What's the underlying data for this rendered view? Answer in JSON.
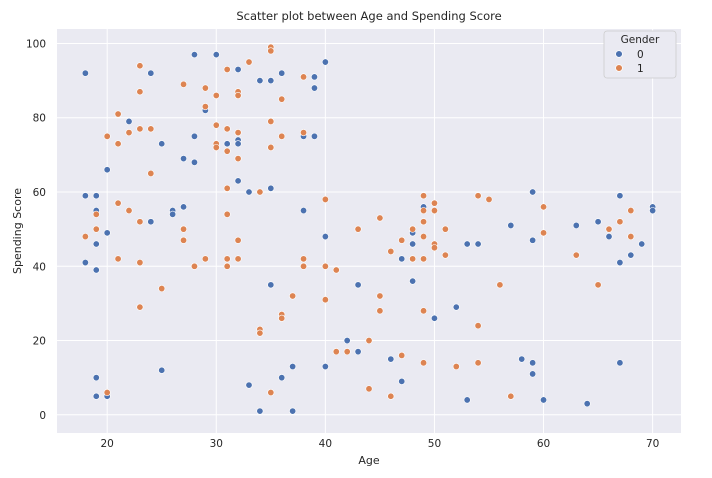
{
  "chart_data": {
    "type": "scatter",
    "title": "Scatter plot between Age and Spending Score",
    "xlabel": "Age",
    "ylabel": "Spending Score",
    "xlim": [
      15.4,
      72.6
    ],
    "ylim": [
      -4.9,
      103.9
    ],
    "xticks": [
      20,
      30,
      40,
      50,
      60,
      70
    ],
    "yticks": [
      0,
      20,
      40,
      60,
      80,
      100
    ],
    "grid": true,
    "legend": {
      "title": "Gender",
      "placement": "top-right"
    },
    "series": [
      {
        "name": "0",
        "color": "#4c72b0",
        "points": [
          [
            18,
            92
          ],
          [
            18,
            59
          ],
          [
            18,
            41
          ],
          [
            19,
            59
          ],
          [
            19,
            55
          ],
          [
            19,
            46
          ],
          [
            19,
            39
          ],
          [
            19,
            10
          ],
          [
            19,
            5
          ],
          [
            20,
            66
          ],
          [
            20,
            49
          ],
          [
            20,
            5
          ],
          [
            22,
            79
          ],
          [
            24,
            92
          ],
          [
            24,
            52
          ],
          [
            25,
            73
          ],
          [
            25,
            12
          ],
          [
            26,
            55
          ],
          [
            26,
            54
          ],
          [
            27,
            69
          ],
          [
            27,
            56
          ],
          [
            28,
            97
          ],
          [
            28,
            75
          ],
          [
            28,
            68
          ],
          [
            29,
            82
          ],
          [
            30,
            97
          ],
          [
            31,
            73
          ],
          [
            32,
            74
          ],
          [
            32,
            73
          ],
          [
            32,
            63
          ],
          [
            32,
            93
          ],
          [
            33,
            60
          ],
          [
            33,
            8
          ],
          [
            34,
            90
          ],
          [
            34,
            1
          ],
          [
            35,
            90
          ],
          [
            35,
            61
          ],
          [
            35,
            35
          ],
          [
            36,
            92
          ],
          [
            36,
            10
          ],
          [
            37,
            13
          ],
          [
            37,
            1
          ],
          [
            38,
            75
          ],
          [
            38,
            55
          ],
          [
            39,
            91
          ],
          [
            39,
            88
          ],
          [
            39,
            75
          ],
          [
            40,
            95
          ],
          [
            40,
            48
          ],
          [
            40,
            13
          ],
          [
            42,
            20
          ],
          [
            43,
            35
          ],
          [
            43,
            17
          ],
          [
            46,
            15
          ],
          [
            47,
            42
          ],
          [
            47,
            9
          ],
          [
            48,
            49
          ],
          [
            48,
            46
          ],
          [
            48,
            42
          ],
          [
            48,
            36
          ],
          [
            49,
            56
          ],
          [
            50,
            26
          ],
          [
            52,
            29
          ],
          [
            53,
            46
          ],
          [
            53,
            4
          ],
          [
            54,
            46
          ],
          [
            57,
            51
          ],
          [
            58,
            15
          ],
          [
            59,
            60
          ],
          [
            59,
            47
          ],
          [
            59,
            14
          ],
          [
            59,
            11
          ],
          [
            60,
            4
          ],
          [
            63,
            51
          ],
          [
            64,
            3
          ],
          [
            65,
            52
          ],
          [
            66,
            48
          ],
          [
            67,
            59
          ],
          [
            67,
            41
          ],
          [
            67,
            14
          ],
          [
            68,
            43
          ],
          [
            69,
            46
          ],
          [
            70,
            56
          ],
          [
            70,
            55
          ]
        ]
      },
      {
        "name": "1",
        "color": "#dd8452",
        "points": [
          [
            18,
            48
          ],
          [
            19,
            54
          ],
          [
            19,
            50
          ],
          [
            20,
            75
          ],
          [
            20,
            6
          ],
          [
            21,
            81
          ],
          [
            21,
            73
          ],
          [
            21,
            57
          ],
          [
            21,
            42
          ],
          [
            22,
            76
          ],
          [
            22,
            55
          ],
          [
            23,
            94
          ],
          [
            23,
            87
          ],
          [
            23,
            77
          ],
          [
            23,
            52
          ],
          [
            23,
            41
          ],
          [
            23,
            29
          ],
          [
            24,
            77
          ],
          [
            24,
            65
          ],
          [
            25,
            34
          ],
          [
            27,
            89
          ],
          [
            27,
            50
          ],
          [
            27,
            47
          ],
          [
            28,
            40
          ],
          [
            29,
            88
          ],
          [
            29,
            83
          ],
          [
            29,
            42
          ],
          [
            30,
            86
          ],
          [
            30,
            78
          ],
          [
            30,
            73
          ],
          [
            30,
            72
          ],
          [
            31,
            93
          ],
          [
            31,
            77
          ],
          [
            31,
            71
          ],
          [
            31,
            61
          ],
          [
            31,
            54
          ],
          [
            31,
            42
          ],
          [
            31,
            40
          ],
          [
            32,
            87
          ],
          [
            32,
            86
          ],
          [
            32,
            76
          ],
          [
            32,
            69
          ],
          [
            32,
            47
          ],
          [
            32,
            42
          ],
          [
            33,
            95
          ],
          [
            34,
            60
          ],
          [
            34,
            23
          ],
          [
            34,
            22
          ],
          [
            35,
            99
          ],
          [
            35,
            98
          ],
          [
            35,
            79
          ],
          [
            35,
            72
          ],
          [
            35,
            6
          ],
          [
            36,
            85
          ],
          [
            36,
            75
          ],
          [
            36,
            27
          ],
          [
            36,
            26
          ],
          [
            37,
            32
          ],
          [
            38,
            91
          ],
          [
            38,
            76
          ],
          [
            38,
            42
          ],
          [
            38,
            40
          ],
          [
            40,
            58
          ],
          [
            40,
            40
          ],
          [
            40,
            31
          ],
          [
            41,
            39
          ],
          [
            41,
            17
          ],
          [
            42,
            17
          ],
          [
            43,
            50
          ],
          [
            44,
            20
          ],
          [
            44,
            7
          ],
          [
            45,
            53
          ],
          [
            45,
            32
          ],
          [
            45,
            28
          ],
          [
            46,
            44
          ],
          [
            46,
            5
          ],
          [
            47,
            47
          ],
          [
            47,
            16
          ],
          [
            48,
            50
          ],
          [
            48,
            42
          ],
          [
            49,
            59
          ],
          [
            49,
            55
          ],
          [
            49,
            52
          ],
          [
            49,
            48
          ],
          [
            49,
            42
          ],
          [
            49,
            28
          ],
          [
            49,
            14
          ],
          [
            50,
            57
          ],
          [
            50,
            55
          ],
          [
            50,
            46
          ],
          [
            50,
            45
          ],
          [
            51,
            50
          ],
          [
            51,
            43
          ],
          [
            52,
            13
          ],
          [
            54,
            59
          ],
          [
            54,
            24
          ],
          [
            54,
            14
          ],
          [
            55,
            58
          ],
          [
            56,
            35
          ],
          [
            57,
            5
          ],
          [
            60,
            56
          ],
          [
            60,
            49
          ],
          [
            63,
            43
          ],
          [
            65,
            35
          ],
          [
            66,
            50
          ],
          [
            67,
            52
          ],
          [
            68,
            55
          ],
          [
            68,
            48
          ]
        ]
      }
    ]
  }
}
